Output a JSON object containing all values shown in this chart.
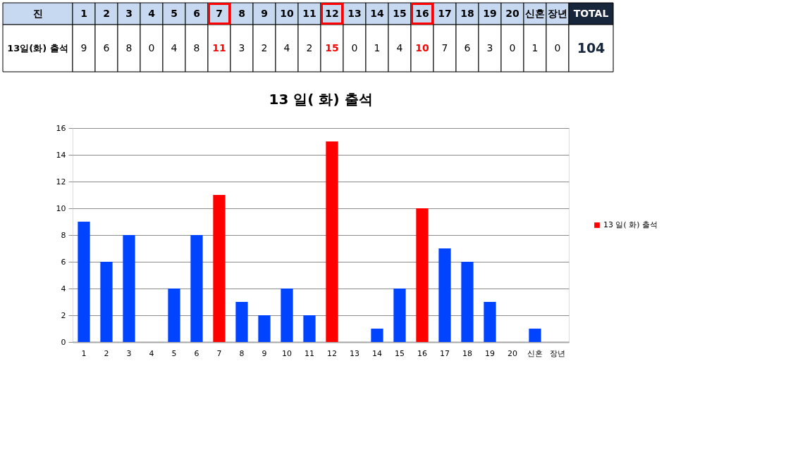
{
  "chart_data": {
    "type": "bar",
    "title": "13 일( 화) 출석",
    "categories": [
      "1",
      "2",
      "3",
      "4",
      "5",
      "6",
      "7",
      "8",
      "9",
      "10",
      "11",
      "12",
      "13",
      "14",
      "15",
      "16",
      "17",
      "18",
      "19",
      "20",
      "신혼",
      "장년"
    ],
    "series": [
      {
        "name": "13 일( 화) 출석",
        "color": "#ff0000",
        "colors": [
          "#0044ff",
          "#0044ff",
          "#0044ff",
          "#0044ff",
          "#0044ff",
          "#0044ff",
          "#ff0000",
          "#0044ff",
          "#0044ff",
          "#0044ff",
          "#0044ff",
          "#ff0000",
          "#0044ff",
          "#0044ff",
          "#0044ff",
          "#ff0000",
          "#0044ff",
          "#0044ff",
          "#0044ff",
          "#0044ff",
          "#0044ff",
          "#0044ff"
        ],
        "values": [
          9,
          6,
          8,
          0,
          4,
          8,
          11,
          3,
          2,
          4,
          2,
          15,
          0,
          1,
          4,
          10,
          7,
          6,
          3,
          0,
          1,
          0
        ]
      }
    ],
    "ylim": [
      0,
      16
    ],
    "yticks": [
      0,
      2,
      4,
      6,
      8,
      10,
      12,
      14,
      16
    ],
    "grid": "y",
    "legend": "right",
    "data_labels": true,
    "annotations": [
      "진",
      "13일(화) 출석",
      "TOTAL",
      "104"
    ]
  }
}
